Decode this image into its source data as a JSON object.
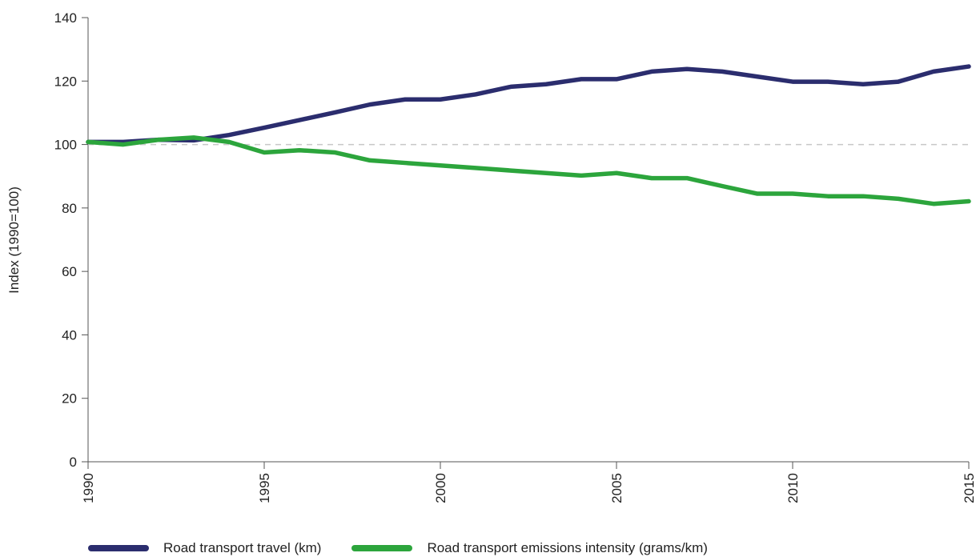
{
  "chart_data": {
    "type": "line",
    "title": "",
    "xlabel": "",
    "ylabel": "Index (1990=100)",
    "xlim": [
      1990,
      2015
    ],
    "ylim": [
      0,
      140
    ],
    "x_ticks": [
      "1990",
      "1995",
      "2000",
      "2005",
      "2010",
      "2015"
    ],
    "y_ticks": [
      "0",
      "20",
      "40",
      "60",
      "80",
      "100",
      "120",
      "140"
    ],
    "reference_line": {
      "y": 100,
      "style": "dashed",
      "color": "#c8c8c8"
    },
    "grid": false,
    "legend_position": "bottom",
    "x": [
      1990,
      1991,
      1992,
      1993,
      1994,
      1995,
      1996,
      1997,
      1998,
      1999,
      2000,
      2001,
      2002,
      2003,
      2004,
      2005,
      2006,
      2007,
      2008,
      2009,
      2010,
      2011,
      2012,
      2013,
      2014,
      2015
    ],
    "series": [
      {
        "name": "Road transport travel (km)",
        "color": "#2b2d6e",
        "values": [
          100.8,
          100.8,
          101.5,
          101.3,
          103.0,
          105.3,
          107.7,
          110.1,
          112.6,
          114.2,
          114.2,
          115.8,
          118.2,
          119.0,
          120.6,
          120.6,
          123.0,
          123.8,
          123.0,
          121.4,
          119.8,
          119.8,
          119.0,
          119.8,
          123.0,
          124.6
        ]
      },
      {
        "name": "Road transport emissions intensity (grams/km)",
        "color": "#2ca53c",
        "values": [
          100.8,
          100.0,
          101.5,
          102.2,
          100.8,
          97.5,
          98.2,
          97.5,
          95.0,
          94.2,
          93.4,
          92.6,
          91.8,
          91.0,
          90.2,
          91.0,
          89.4,
          89.4,
          86.9,
          84.5,
          84.5,
          83.7,
          83.7,
          82.9,
          81.3,
          82.1
        ]
      }
    ]
  }
}
